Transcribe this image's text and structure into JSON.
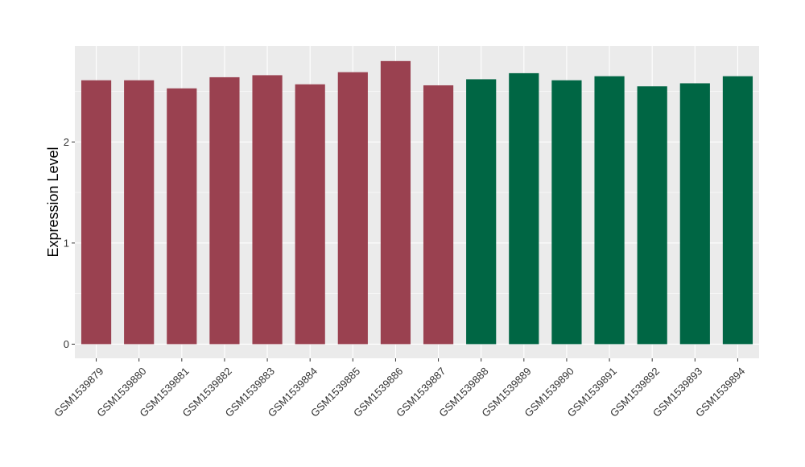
{
  "chart_data": {
    "type": "bar",
    "title": "",
    "xlabel": "",
    "ylabel": "Expression Level",
    "ylim": [
      -0.14,
      2.95
    ],
    "yticks": [
      0,
      1,
      2
    ],
    "grid": true,
    "categories": [
      "GSM1539879",
      "GSM1539880",
      "GSM1539881",
      "GSM1539882",
      "GSM1539883",
      "GSM1539884",
      "GSM1539885",
      "GSM1539886",
      "GSM1539887",
      "GSM1539888",
      "GSM1539889",
      "GSM1539890",
      "GSM1539891",
      "GSM1539892",
      "GSM1539893",
      "GSM1539894"
    ],
    "values": [
      2.61,
      2.61,
      2.53,
      2.64,
      2.66,
      2.57,
      2.69,
      2.8,
      2.56,
      2.62,
      2.68,
      2.61,
      2.65,
      2.55,
      2.58,
      2.65
    ],
    "bar_colors": [
      "#9A4150",
      "#9A4150",
      "#9A4150",
      "#9A4150",
      "#9A4150",
      "#9A4150",
      "#9A4150",
      "#9A4150",
      "#9A4150",
      "#006644",
      "#006644",
      "#006644",
      "#006644",
      "#006644",
      "#006644",
      "#006644"
    ],
    "panel_background": "#EBEBEB",
    "gridline_color": "#FFFFFF"
  }
}
